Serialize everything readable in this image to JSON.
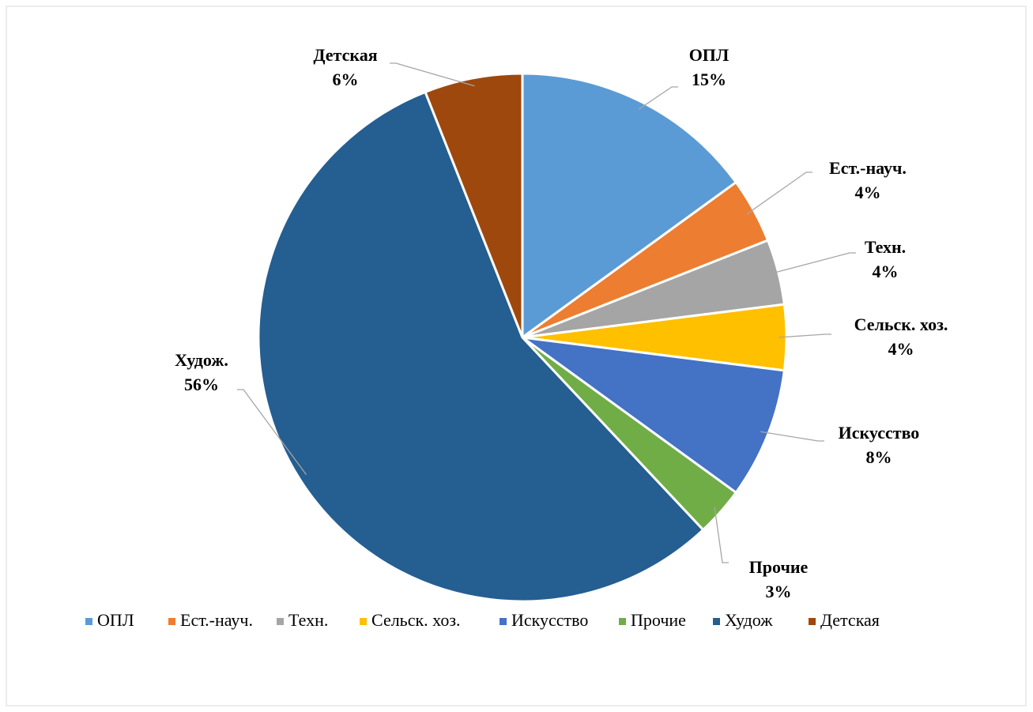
{
  "chart_data": {
    "type": "pie",
    "categories": [
      "ОПЛ",
      "Ест.-науч.",
      "Техн.",
      "Сельск. хоз.",
      "Искусство",
      "Прочие",
      "Худож",
      "Детская"
    ],
    "data_label_names": [
      "ОПЛ",
      "Ест.-науч.",
      "Техн.",
      "Сельск. хоз.",
      "Искусство",
      "Прочие",
      "Худож.",
      "Детская"
    ],
    "values": [
      15,
      4,
      4,
      4,
      8,
      3,
      56,
      6
    ],
    "value_labels": [
      "15%",
      "4%",
      "4%",
      "4%",
      "8%",
      "3%",
      "56%",
      "6%"
    ],
    "colors": [
      "#5b9bd5",
      "#ed7d31",
      "#a5a5a5",
      "#ffc000",
      "#4472c4",
      "#70ad47",
      "#255e91",
      "#9e480e"
    ],
    "legend": "bottom"
  }
}
